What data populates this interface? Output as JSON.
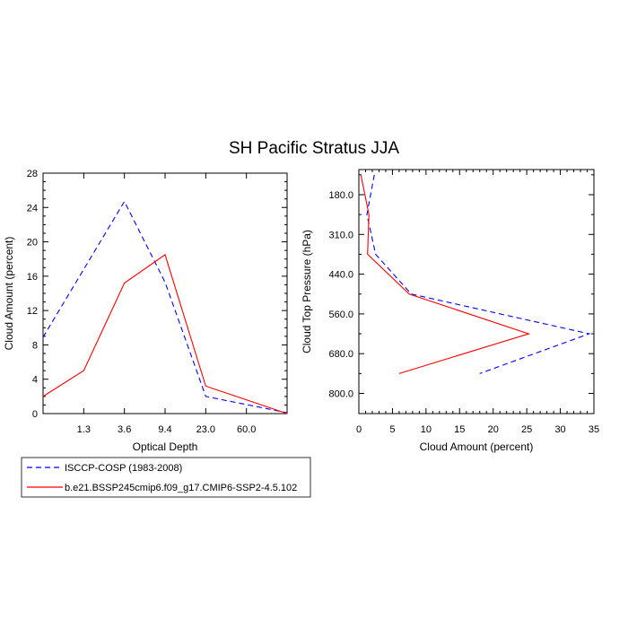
{
  "figure": {
    "title": "SH Pacific Stratus JJA"
  },
  "legend": {
    "placement": "bottom-left",
    "entries": [
      {
        "label": "ISCCP-COSP (1983-2008)",
        "color": "#0000ff",
        "dash": "dashed"
      },
      {
        "label": "b.e21.BSSP245cmip6.f09_g17.CMIP6-SSP2-4.5.102",
        "color": "#ff0000",
        "dash": "solid"
      }
    ]
  },
  "chart_data": [
    {
      "type": "line",
      "xlabel": "Optical Depth",
      "ylabel": "Cloud Amount (percent)",
      "x_scale": "categorical-bins",
      "x_tick_labels": [
        "1.3",
        "3.6",
        "9.4",
        "23.0",
        "60.0"
      ],
      "x_bin_edges": [
        0,
        1.3,
        3.6,
        9.4,
        23.0,
        60.0,
        379
      ],
      "ylim": [
        0,
        28
      ],
      "y_ticks": [
        0,
        4,
        8,
        12,
        16,
        20,
        24,
        28
      ],
      "series": [
        {
          "name": "ISCCP-COSP (1983-2008)",
          "color": "#0000ff",
          "dash": "dashed",
          "points": [
            {
              "bin_edge_lower": 0,
              "y": 8.9
            },
            {
              "bin_edge_lower": 1.3,
              "y": 16.8
            },
            {
              "bin_edge_lower": 3.6,
              "y": 24.7
            },
            {
              "bin_edge_lower": 9.4,
              "y": 15.3
            },
            {
              "bin_edge_lower": 23.0,
              "y": 2.0
            },
            {
              "bin_edge_lower": 60.0,
              "y": 0.1
            }
          ]
        },
        {
          "name": "b.e21.BSSP245cmip6.f09_g17.CMIP6-SSP2-4.5.102",
          "color": "#ff0000",
          "dash": "solid",
          "points": [
            {
              "bin_edge_lower": 0,
              "y": 2.0
            },
            {
              "bin_edge_lower": 1.3,
              "y": 5.0
            },
            {
              "bin_edge_lower": 3.6,
              "y": 15.2
            },
            {
              "bin_edge_lower": 9.4,
              "y": 18.5
            },
            {
              "bin_edge_lower": 23.0,
              "y": 3.2
            },
            {
              "bin_edge_lower": 60.0,
              "y": 0.0
            }
          ]
        }
      ]
    },
    {
      "type": "line",
      "xlabel": "Cloud Amount (percent)",
      "ylabel": "Cloud Top Pressure (hPa)",
      "xlim": [
        0,
        35
      ],
      "x_ticks": [
        0,
        5,
        10,
        15,
        20,
        25,
        30,
        35
      ],
      "ylim": [
        1000,
        50
      ],
      "y_tick_labels": [
        "180.0",
        "310.0",
        "440.0",
        "560.0",
        "680.0",
        "800.0"
      ],
      "y_ticks": [
        180,
        310,
        440,
        560,
        680,
        800
      ],
      "y_reversed": true,
      "series": [
        {
          "name": "ISCCP-COSP (1983-2008)",
          "color": "#0000ff",
          "dash": "dashed",
          "points": [
            {
              "x": 2.3,
              "y": 115
            },
            {
              "x": 1.2,
              "y": 245
            },
            {
              "x": 2.5,
              "y": 375
            },
            {
              "x": 7.8,
              "y": 500
            },
            {
              "x": 34.3,
              "y": 620
            },
            {
              "x": 18.0,
              "y": 740
            }
          ]
        },
        {
          "name": "b.e21.BSSP245cmip6.f09_g17.CMIP6-SSP2-4.5.102",
          "color": "#ff0000",
          "dash": "solid",
          "points": [
            {
              "x": 0.3,
              "y": 115
            },
            {
              "x": 1.5,
              "y": 245
            },
            {
              "x": 1.3,
              "y": 375
            },
            {
              "x": 7.5,
              "y": 500
            },
            {
              "x": 25.3,
              "y": 620
            },
            {
              "x": 6.0,
              "y": 740
            }
          ]
        }
      ]
    }
  ]
}
